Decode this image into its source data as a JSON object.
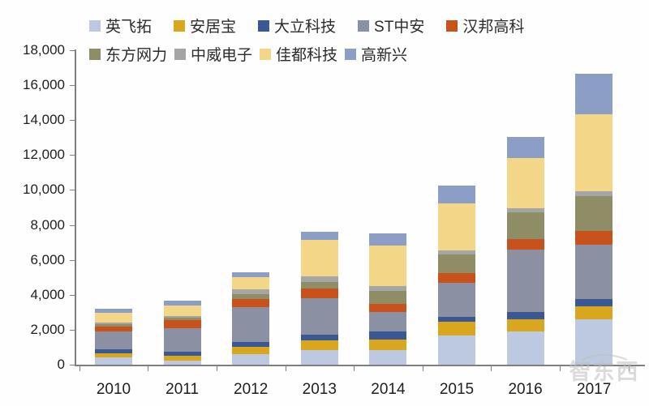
{
  "chart_data": {
    "type": "bar",
    "stacked": true,
    "title": "",
    "xlabel": "",
    "ylabel": "",
    "categories": [
      "2010",
      "2011",
      "2012",
      "2013",
      "2014",
      "2015",
      "2016",
      "2017"
    ],
    "series": [
      {
        "name": "英飞拓",
        "color": "#bcc9e0",
        "values": [
          400,
          250,
          600,
          850,
          850,
          1650,
          1900,
          2600
        ]
      },
      {
        "name": "安居宝",
        "color": "#d9a71e",
        "values": [
          250,
          250,
          400,
          550,
          600,
          800,
          700,
          750
        ]
      },
      {
        "name": "大立科技",
        "color": "#3a5894",
        "values": [
          250,
          250,
          300,
          300,
          450,
          300,
          400,
          400
        ]
      },
      {
        "name": "ST中安",
        "color": "#8b90a2",
        "values": [
          1000,
          1350,
          2000,
          2100,
          1100,
          1950,
          3600,
          3100
        ]
      },
      {
        "name": "汉邦高科",
        "color": "#c8511c",
        "values": [
          300,
          450,
          450,
          550,
          500,
          550,
          600,
          800
        ]
      },
      {
        "name": "东方网力",
        "color": "#8e8d66",
        "values": [
          100,
          150,
          300,
          400,
          700,
          1050,
          1500,
          2000
        ]
      },
      {
        "name": "中威电子",
        "color": "#a5a5a5",
        "values": [
          100,
          100,
          250,
          300,
          300,
          250,
          250,
          300
        ]
      },
      {
        "name": "佳都科技",
        "color": "#f4d689",
        "values": [
          550,
          600,
          700,
          2100,
          2300,
          2700,
          2900,
          4400
        ]
      },
      {
        "name": "高新兴",
        "color": "#8c9ec6",
        "values": [
          250,
          250,
          300,
          450,
          700,
          1000,
          1200,
          2300
        ]
      }
    ],
    "ylim": [
      0,
      18000
    ],
    "ytick_step": 2000,
    "ytick_labels": [
      "0",
      "2,000",
      "4,000",
      "6,000",
      "8,000",
      "10,000",
      "12,000",
      "14,000",
      "16,000",
      "18,000"
    ],
    "grid": false,
    "legend_position": "top"
  },
  "legend": {
    "rows": [
      [
        "英飞拓",
        "安居宝",
        "大立科技",
        "ST中安",
        "汉邦高科"
      ],
      [
        "东方网力",
        "中威电子",
        "佳都科技",
        "高新兴"
      ]
    ]
  },
  "watermark": {
    "text": "智东西"
  }
}
